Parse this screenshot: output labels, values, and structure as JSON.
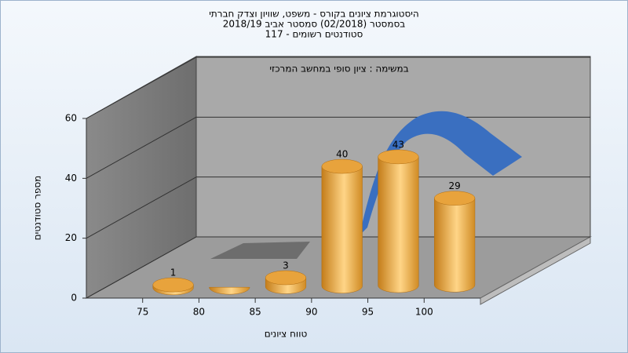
{
  "chart_data": {
    "type": "histogram",
    "title": "היסטוגרמת ציונים בקורס - משפט, שוויון וצדק חברתי",
    "subtitle_lines": [
      "בסמסטר  (02/2018)  סמסטר אביב 2018/19",
      "סטודנטים רשומים - 117"
    ],
    "annotation": "במשימה : ציון סופי במחשב המרכזי",
    "x_label": "טווח ציונים",
    "y_label": "מספר סטודנטים",
    "bins": [
      75,
      80,
      85,
      90,
      95,
      100,
      105
    ],
    "values": [
      1,
      0,
      3,
      40,
      43,
      29
    ],
    "color": "#e8a33c",
    "xlim": [
      70,
      105
    ],
    "xticks": [
      75,
      80,
      85,
      90,
      95,
      100
    ],
    "ylim": [
      0,
      60
    ],
    "yticks": [
      0,
      20,
      40,
      60
    ],
    "grid": true
  }
}
